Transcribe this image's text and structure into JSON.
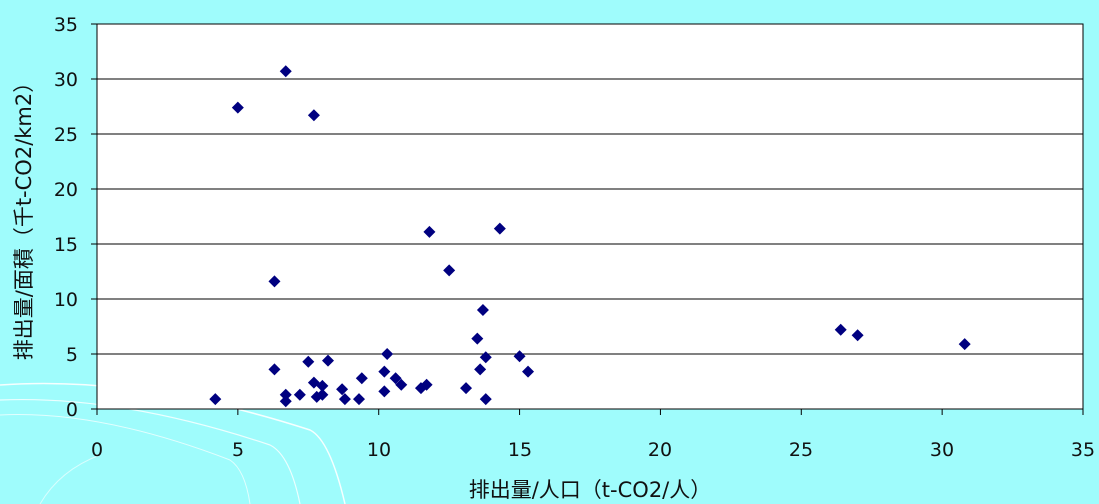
{
  "chart_data": {
    "type": "scatter",
    "title": "",
    "xlabel": "排出量/人口（t-CO2/人）",
    "ylabel": "排出量/面積（千t-CO2/km2）",
    "xlim": [
      0,
      35
    ],
    "ylim": [
      0,
      35
    ],
    "x_ticks": [
      "0",
      "5",
      "10",
      "15",
      "20",
      "25",
      "30",
      "35"
    ],
    "y_ticks": [
      "0",
      "5",
      "10",
      "15",
      "20",
      "25",
      "30",
      "35"
    ],
    "grid": "horizontal",
    "legend": "none",
    "marker": "diamond",
    "colors": {
      "marker": "#000080",
      "plot_background": "#ffffff",
      "page_background": "#9ffcfc",
      "swoosh": "#ffffff"
    },
    "points": [
      {
        "x": 4.2,
        "y": 0.9
      },
      {
        "x": 5.0,
        "y": 27.4
      },
      {
        "x": 6.3,
        "y": 11.6
      },
      {
        "x": 6.3,
        "y": 3.6
      },
      {
        "x": 6.7,
        "y": 30.7
      },
      {
        "x": 6.7,
        "y": 1.3
      },
      {
        "x": 6.7,
        "y": 0.7
      },
      {
        "x": 7.2,
        "y": 1.3
      },
      {
        "x": 7.5,
        "y": 4.3
      },
      {
        "x": 7.7,
        "y": 26.7
      },
      {
        "x": 7.7,
        "y": 2.4
      },
      {
        "x": 7.8,
        "y": 1.1
      },
      {
        "x": 8.0,
        "y": 2.1
      },
      {
        "x": 8.0,
        "y": 1.3
      },
      {
        "x": 8.2,
        "y": 4.4
      },
      {
        "x": 8.7,
        "y": 1.8
      },
      {
        "x": 8.8,
        "y": 0.9
      },
      {
        "x": 9.3,
        "y": 0.9
      },
      {
        "x": 9.4,
        "y": 2.8
      },
      {
        "x": 10.2,
        "y": 3.4
      },
      {
        "x": 10.2,
        "y": 1.6
      },
      {
        "x": 10.3,
        "y": 5.0
      },
      {
        "x": 10.6,
        "y": 2.8
      },
      {
        "x": 10.8,
        "y": 2.2
      },
      {
        "x": 11.5,
        "y": 1.9
      },
      {
        "x": 11.7,
        "y": 2.2
      },
      {
        "x": 11.8,
        "y": 16.1
      },
      {
        "x": 12.5,
        "y": 12.6
      },
      {
        "x": 13.1,
        "y": 1.9
      },
      {
        "x": 13.5,
        "y": 6.4
      },
      {
        "x": 13.6,
        "y": 3.6
      },
      {
        "x": 13.7,
        "y": 9.0
      },
      {
        "x": 13.8,
        "y": 4.7
      },
      {
        "x": 13.8,
        "y": 0.9
      },
      {
        "x": 14.3,
        "y": 16.4
      },
      {
        "x": 15.0,
        "y": 4.8
      },
      {
        "x": 15.3,
        "y": 3.4
      },
      {
        "x": 26.4,
        "y": 7.2
      },
      {
        "x": 27.0,
        "y": 6.7
      },
      {
        "x": 30.8,
        "y": 5.9
      }
    ]
  }
}
